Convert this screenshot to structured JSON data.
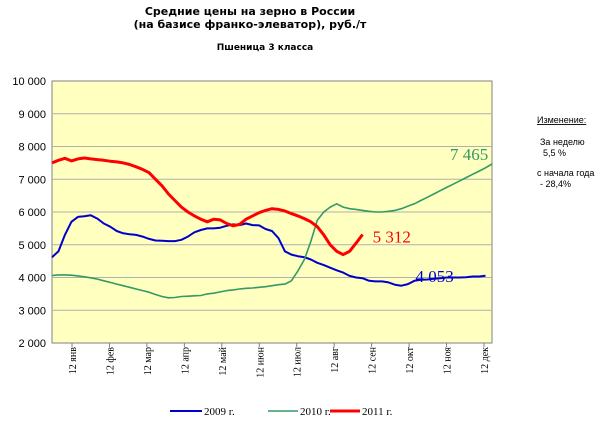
{
  "chart_data": {
    "type": "line",
    "title": "Средние цены на зерно в России",
    "title_line2": "(на базисе франко-элеватор), руб./т",
    "subtitle": "Пшеница 3  класса",
    "y_tick_labels": [
      "2 000",
      "3 000",
      "4 000",
      "5 000",
      "6 000",
      "7 000",
      "8 000",
      "9 000",
      "10 000"
    ],
    "y_ticks": [
      2000,
      3000,
      4000,
      5000,
      6000,
      7000,
      8000,
      9000,
      10000
    ],
    "ylim": [
      2000,
      10000
    ],
    "x_tick_labels": [
      "12 янв",
      "12 фев",
      "12 мар",
      "12 апр",
      "12 май",
      "12 июн",
      "12 июл",
      "12 авг",
      "12 сен",
      "12 окт",
      "12 ноя",
      "12 дек"
    ],
    "xlim": [
      0,
      51
    ],
    "grid": true,
    "legend_position": "bottom",
    "series": [
      {
        "name": "2009 г.",
        "color": "#0000cc",
        "end_label": "4 053",
        "values": [
          4620,
          4800,
          5300,
          5700,
          5850,
          5870,
          5900,
          5800,
          5650,
          5550,
          5420,
          5350,
          5320,
          5300,
          5250,
          5180,
          5130,
          5120,
          5110,
          5110,
          5150,
          5250,
          5380,
          5450,
          5500,
          5500,
          5520,
          5580,
          5620,
          5600,
          5650,
          5600,
          5590,
          5480,
          5420,
          5200,
          4800,
          4700,
          4650,
          4620,
          4550,
          4450,
          4380,
          4300,
          4220,
          4150,
          4050,
          4000,
          3980,
          3900,
          3880,
          3880,
          3850,
          3780,
          3750,
          3800,
          3900,
          3930,
          3940,
          3960,
          3980,
          4000,
          4000,
          4000,
          4010,
          4030,
          4030,
          4053
        ]
      },
      {
        "name": "2010 г.",
        "color": "#339966",
        "end_label": "7 465",
        "values": [
          4060,
          4080,
          4080,
          4070,
          4050,
          4020,
          3990,
          3950,
          3900,
          3850,
          3800,
          3750,
          3700,
          3650,
          3600,
          3550,
          3480,
          3420,
          3380,
          3390,
          3420,
          3430,
          3440,
          3450,
          3500,
          3520,
          3560,
          3600,
          3620,
          3650,
          3670,
          3680,
          3700,
          3720,
          3750,
          3780,
          3800,
          3900,
          4200,
          4550,
          5100,
          5750,
          6000,
          6150,
          6250,
          6150,
          6100,
          6080,
          6050,
          6020,
          6000,
          6000,
          6020,
          6050,
          6100,
          6180,
          6250,
          6350,
          6450,
          6550,
          6650,
          6750,
          6850,
          6950,
          7050,
          7150,
          7250,
          7350,
          7465
        ]
      },
      {
        "name": "2011 г.",
        "color": "#ff0000",
        "end_label": "5 312",
        "values": [
          7500,
          7580,
          7640,
          7560,
          7620,
          7650,
          7620,
          7600,
          7580,
          7550,
          7530,
          7500,
          7450,
          7380,
          7300,
          7200,
          7000,
          6800,
          6550,
          6350,
          6150,
          6000,
          5880,
          5780,
          5700,
          5780,
          5760,
          5650,
          5580,
          5620,
          5780,
          5880,
          5980,
          6050,
          6100,
          6080,
          6030,
          5950,
          5880,
          5800,
          5700,
          5550,
          5300,
          5000,
          4800,
          4700,
          4800,
          5050,
          5312
        ]
      }
    ]
  },
  "side_note": {
    "heading": "Изменение:",
    "week_label": "За  неделю",
    "week_value": "5,5 %",
    "year_label": "с начала года",
    "year_value": "- 28,4%"
  }
}
